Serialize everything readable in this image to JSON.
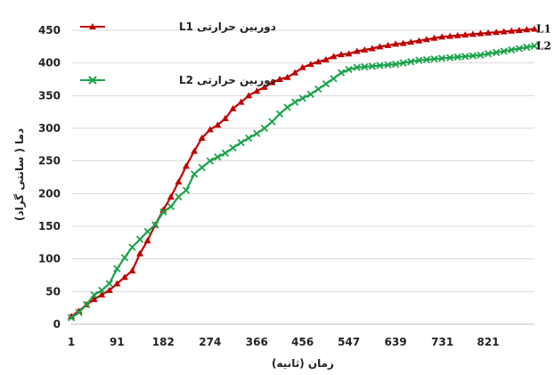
{
  "chart_data": {
    "type": "line",
    "xlabel": "زمان (ثانیه)",
    "ylabel": "دما ( سانتی گراد)",
    "ylim": [
      0,
      450
    ],
    "yticks": [
      0,
      50,
      100,
      150,
      200,
      250,
      300,
      350,
      400,
      450
    ],
    "xlim": [
      1,
      912
    ],
    "xticks": [
      1,
      91,
      182,
      274,
      366,
      456,
      547,
      639,
      731,
      821
    ],
    "grid": "horizontal",
    "legend_position": "top-left",
    "series": [
      {
        "name": "دوربین حرارتی L1",
        "end_label": "L1",
        "color": "#c00000",
        "marker": "triangle",
        "x": [
          1,
          16,
          31,
          46,
          61,
          76,
          91,
          106,
          121,
          136,
          151,
          166,
          182,
          197,
          212,
          227,
          243,
          258,
          274,
          289,
          304,
          319,
          335,
          350,
          366,
          381,
          396,
          411,
          426,
          441,
          456,
          472,
          487,
          502,
          517,
          532,
          547,
          563,
          578,
          593,
          608,
          624,
          639,
          654,
          669,
          685,
          700,
          715,
          730,
          746,
          761,
          776,
          791,
          806,
          821,
          837,
          852,
          867,
          882,
          897,
          912
        ],
        "values": [
          12,
          20,
          30,
          38,
          45,
          52,
          62,
          72,
          82,
          108,
          128,
          152,
          175,
          195,
          218,
          242,
          265,
          285,
          298,
          305,
          315,
          330,
          340,
          350,
          357,
          363,
          370,
          375,
          378,
          385,
          393,
          398,
          402,
          405,
          410,
          413,
          414,
          418,
          420,
          422,
          425,
          427,
          429,
          430,
          432,
          434,
          436,
          438,
          440,
          441,
          442,
          443,
          444,
          445,
          446,
          447,
          448,
          449,
          450,
          451,
          452
        ]
      },
      {
        "name": "دوربین حرارتی L2",
        "end_label": "L2",
        "color": "#1aa34a",
        "marker": "x",
        "x": [
          1,
          16,
          31,
          46,
          61,
          76,
          91,
          106,
          121,
          136,
          151,
          166,
          182,
          197,
          212,
          227,
          243,
          258,
          274,
          289,
          304,
          319,
          335,
          350,
          366,
          381,
          396,
          411,
          426,
          441,
          456,
          472,
          487,
          502,
          517,
          532,
          547,
          563,
          578,
          593,
          608,
          624,
          639,
          654,
          669,
          685,
          700,
          715,
          730,
          746,
          761,
          776,
          791,
          806,
          821,
          837,
          852,
          867,
          882,
          897,
          912
        ],
        "values": [
          10,
          18,
          30,
          45,
          52,
          62,
          85,
          102,
          118,
          130,
          142,
          152,
          172,
          180,
          195,
          205,
          230,
          240,
          250,
          256,
          262,
          270,
          278,
          285,
          292,
          300,
          310,
          322,
          332,
          340,
          346,
          352,
          360,
          368,
          376,
          385,
          390,
          393,
          394,
          395,
          396,
          397,
          398,
          400,
          402,
          404,
          405,
          406,
          407,
          408,
          409,
          410,
          411,
          412,
          414,
          416,
          418,
          420,
          422,
          424,
          426
        ]
      }
    ]
  }
}
